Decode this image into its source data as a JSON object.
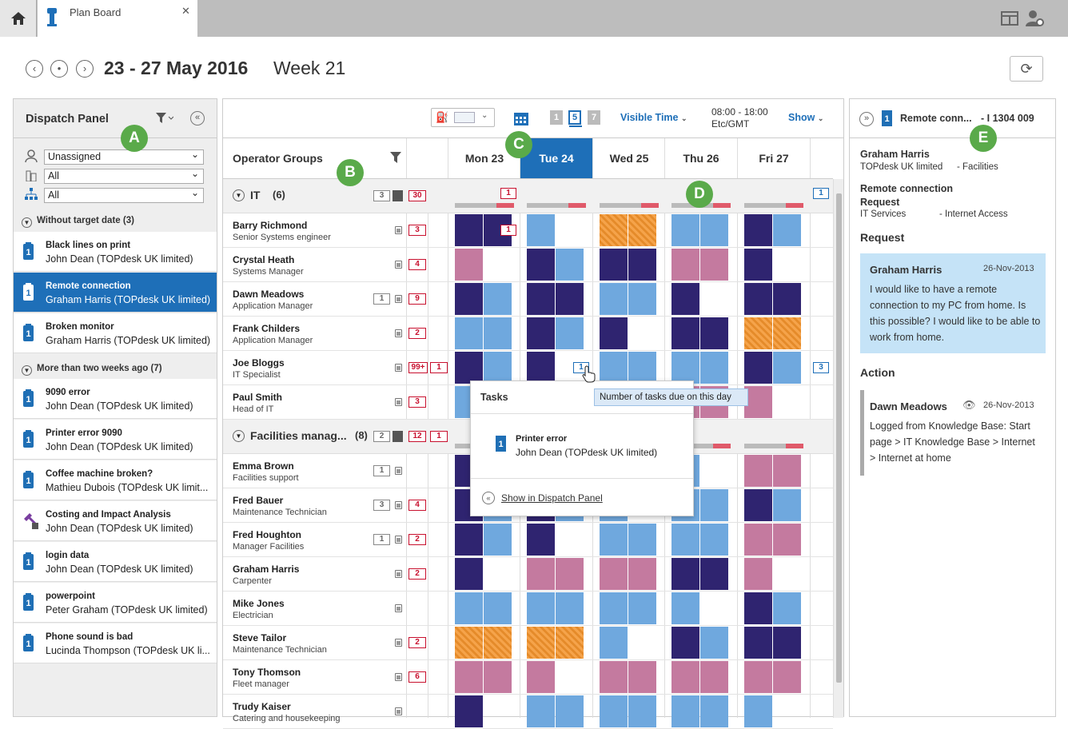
{
  "tab": {
    "title": "Plan Board"
  },
  "datebar": {
    "range": "23 - 27 May 2016",
    "week": "Week 21"
  },
  "dispatch": {
    "title": "Dispatch Panel",
    "filters": [
      "Unassigned",
      "All",
      "All"
    ],
    "groups": [
      {
        "label": "Without target date (3)"
      },
      {
        "label": "More than two weeks ago (7)"
      }
    ],
    "items": [
      {
        "title": "Black lines on print",
        "sub": "John Dean (TOPdesk UK limited)"
      },
      {
        "title": "Remote connection",
        "sub": "Graham Harris (TOPdesk UK limited)"
      },
      {
        "title": "Broken monitor",
        "sub": "Graham Harris (TOPdesk UK limited)"
      },
      {
        "title": "9090 error",
        "sub": "John Dean (TOPdesk UK limited)"
      },
      {
        "title": "Printer error 9090",
        "sub": "John Dean (TOPdesk UK limited)"
      },
      {
        "title": "Coffee machine broken?",
        "sub": "Mathieu Dubois (TOPdesk UK limit..."
      },
      {
        "title": "Costing and Impact Analysis",
        "sub": "John Dean (TOPdesk UK limited)"
      },
      {
        "title": "login data",
        "sub": "John Dean (TOPdesk UK limited)"
      },
      {
        "title": "powerpoint",
        "sub": "Peter Graham (TOPdesk UK limited)"
      },
      {
        "title": "Phone sound is bad",
        "sub": "Lucinda Thompson (TOPdesk UK li..."
      }
    ]
  },
  "toolbar": {
    "visible_time": "Visible Time",
    "time_range": "08:00 - 18:00",
    "timezone": "Etc/GMT",
    "show": "Show",
    "day_views": [
      "1",
      "5",
      "7"
    ]
  },
  "grid": {
    "header": "Operator Groups",
    "days": [
      "Mon 23",
      "Tue 24",
      "Wed 25",
      "Thu 26",
      "Fri 27"
    ],
    "group1": {
      "name": "IT",
      "count": "(6)",
      "g": "3",
      "r": "30",
      "r2": "1",
      "r3": "1"
    },
    "group2": {
      "name": "Facilities manag...",
      "count": "(8)",
      "g": "2",
      "r": "12",
      "r2": "1"
    },
    "operators": [
      {
        "name": "Barry Richmond",
        "role": "Senior Systems engineer",
        "g": "",
        "r": "3"
      },
      {
        "name": "Crystal Heath",
        "role": "Systems Manager",
        "g": "",
        "r": "4"
      },
      {
        "name": "Dawn Meadows",
        "role": "Application Manager",
        "g": "1",
        "r": "9"
      },
      {
        "name": "Frank Childers",
        "role": "Application Manager",
        "g": "",
        "r": "2"
      },
      {
        "name": "Joe Bloggs",
        "role": "IT Specialist",
        "g": "",
        "r": "99+",
        "r2": "1"
      },
      {
        "name": "Paul Smith",
        "role": "Head of IT",
        "g": "",
        "r": "3"
      },
      {
        "name": "Emma Brown",
        "role": "Facilities support",
        "g": "1",
        "r": ""
      },
      {
        "name": "Fred Bauer",
        "role": "Maintenance Technician",
        "g": "3",
        "r": "4"
      },
      {
        "name": "Fred Houghton",
        "role": "Manager Facilities",
        "g": "1",
        "r": "2"
      },
      {
        "name": "Graham Harris",
        "role": "Carpenter",
        "g": "",
        "r": "2"
      },
      {
        "name": "Mike Jones",
        "role": "Electrician",
        "g": "",
        "r": ""
      },
      {
        "name": "Steve Tailor",
        "role": "Maintenance Technician",
        "g": "",
        "r": "2"
      },
      {
        "name": "Tony Thomson",
        "role": "Fleet manager",
        "g": "",
        "r": "6"
      },
      {
        "name": "Trudy Kaiser",
        "role": "Catering and housekeeping",
        "g": "",
        "r": ""
      }
    ],
    "cell_counts": {
      "barry_mon": "1",
      "joe_tue": "1",
      "joe_side": "3"
    }
  },
  "popup": {
    "title": "Tasks",
    "task_title": "Printer error",
    "task_sub": "John Dean (TOPdesk UK limited)",
    "link": "Show in Dispatch Panel",
    "tooltip": "Number of tasks due on this day"
  },
  "right": {
    "number": "1",
    "title": "Remote conn...",
    "id": "- I 1304 009",
    "caller": "Graham Harris",
    "company": "TOPdesk UK limited",
    "dept": "- Facilities",
    "subject": "Remote connection",
    "type": "Request",
    "category": "IT Services",
    "subcategory": "- Internet Access",
    "request_header": "Request",
    "request_author": "Graham Harris",
    "request_date": "26-Nov-2013",
    "request_text": "I would like to have a remote connection to my PC from home. Is this possible? I would like to be able to work from home.",
    "action_header": "Action",
    "action_author": "Dawn Meadows",
    "action_date": "26-Nov-2013",
    "action_text": "Logged from Knowledge Base: Start page > IT Knowledge Base > Internet > Internet at home"
  },
  "badges": [
    "A",
    "B",
    "C",
    "D",
    "E"
  ],
  "colors": {
    "accent": "#1e6fb8",
    "badge": "#5aaa4a",
    "alert": "#c8102e"
  }
}
